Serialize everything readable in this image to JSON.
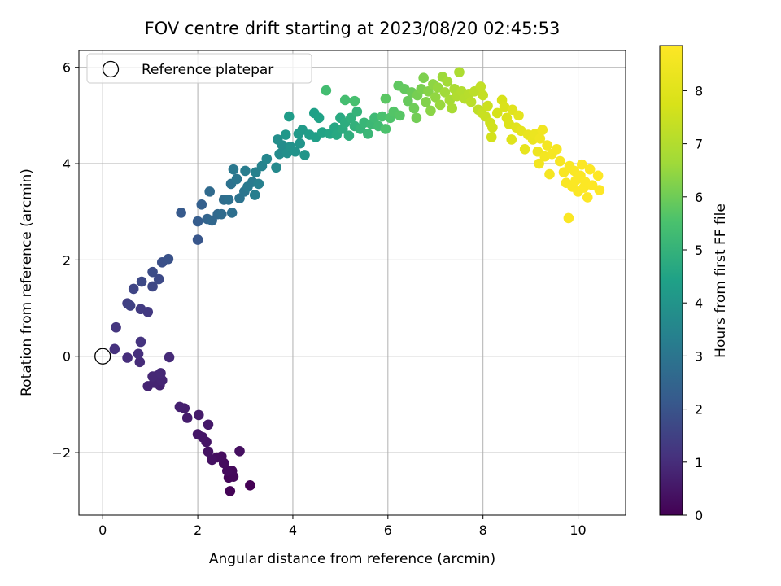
{
  "chart_data": {
    "type": "scatter",
    "title": "FOV centre drift starting at 2023/08/20 02:45:53",
    "xlabel": "Angular distance from reference (arcmin)",
    "ylabel": "Rotation from reference (arcmin)",
    "xlim": [
      -0.5,
      11.0
    ],
    "ylim": [
      -3.3,
      6.35
    ],
    "xticks": [
      0,
      2,
      4,
      6,
      8,
      10
    ],
    "yticks": [
      -2,
      0,
      2,
      4,
      6
    ],
    "grid": true,
    "legend": {
      "placement": "upper-left",
      "entries": [
        "Reference platepar"
      ]
    },
    "reference_point": {
      "x": 0,
      "y": 0,
      "label": "Reference platepar",
      "marker": "hollow-circle"
    },
    "colorbar": {
      "label": "Hours from first FF file",
      "colormap": "viridis",
      "range": [
        0,
        8.85
      ],
      "ticks": [
        0,
        1,
        2,
        3,
        4,
        5,
        6,
        7,
        8
      ]
    },
    "series": [
      {
        "points": [
          {
            "x": 3.1,
            "y": -2.68,
            "t": 0.0
          },
          {
            "x": 2.68,
            "y": -2.8,
            "t": 0.05
          },
          {
            "x": 2.65,
            "y": -2.52,
            "t": 0.1
          },
          {
            "x": 2.75,
            "y": -2.5,
            "t": 0.13
          },
          {
            "x": 2.72,
            "y": -2.38,
            "t": 0.16
          },
          {
            "x": 2.62,
            "y": -2.38,
            "t": 0.2
          },
          {
            "x": 2.55,
            "y": -2.22,
            "t": 0.25
          },
          {
            "x": 2.5,
            "y": -2.08,
            "t": 0.28
          },
          {
            "x": 2.4,
            "y": -2.1,
            "t": 0.3
          },
          {
            "x": 2.88,
            "y": -1.97,
            "t": 0.32
          },
          {
            "x": 2.3,
            "y": -2.15,
            "t": 0.36
          },
          {
            "x": 2.22,
            "y": -1.98,
            "t": 0.4
          },
          {
            "x": 2.18,
            "y": -1.78,
            "t": 0.44
          },
          {
            "x": 2.1,
            "y": -1.68,
            "t": 0.48
          },
          {
            "x": 2.0,
            "y": -1.62,
            "t": 0.5
          },
          {
            "x": 2.22,
            "y": -1.42,
            "t": 0.55
          },
          {
            "x": 2.02,
            "y": -1.22,
            "t": 0.58
          },
          {
            "x": 1.78,
            "y": -1.28,
            "t": 0.62
          },
          {
            "x": 1.72,
            "y": -1.08,
            "t": 0.66
          },
          {
            "x": 1.62,
            "y": -1.05,
            "t": 0.7
          },
          {
            "x": 1.2,
            "y": -0.6,
            "t": 0.75
          },
          {
            "x": 1.08,
            "y": -0.55,
            "t": 0.78
          },
          {
            "x": 0.95,
            "y": -0.62,
            "t": 0.8
          },
          {
            "x": 1.25,
            "y": -0.5,
            "t": 0.83
          },
          {
            "x": 1.15,
            "y": -0.4,
            "t": 0.86
          },
          {
            "x": 1.05,
            "y": -0.42,
            "t": 0.88
          },
          {
            "x": 1.22,
            "y": -0.35,
            "t": 0.9
          },
          {
            "x": 1.4,
            "y": -0.02,
            "t": 0.94
          },
          {
            "x": 0.78,
            "y": -0.12,
            "t": 0.98
          },
          {
            "x": 0.52,
            "y": -0.03,
            "t": 1.02
          },
          {
            "x": 0.75,
            "y": 0.05,
            "t": 1.05
          },
          {
            "x": 0.25,
            "y": 0.15,
            "t": 1.1
          },
          {
            "x": 0.8,
            "y": 0.3,
            "t": 1.15
          },
          {
            "x": 0.28,
            "y": 0.6,
            "t": 1.2
          },
          {
            "x": 0.95,
            "y": 0.92,
            "t": 1.3
          },
          {
            "x": 0.8,
            "y": 0.98,
            "t": 1.35
          },
          {
            "x": 0.52,
            "y": 1.1,
            "t": 1.45
          },
          {
            "x": 0.58,
            "y": 1.05,
            "t": 1.5
          },
          {
            "x": 0.65,
            "y": 1.4,
            "t": 1.6
          },
          {
            "x": 1.05,
            "y": 1.45,
            "t": 1.65
          },
          {
            "x": 0.82,
            "y": 1.55,
            "t": 1.7
          },
          {
            "x": 1.18,
            "y": 1.6,
            "t": 1.75
          },
          {
            "x": 1.05,
            "y": 1.75,
            "t": 1.8
          },
          {
            "x": 1.25,
            "y": 1.95,
            "t": 1.9
          },
          {
            "x": 1.38,
            "y": 2.02,
            "t": 1.95
          },
          {
            "x": 2.0,
            "y": 2.42,
            "t": 2.05
          },
          {
            "x": 1.65,
            "y": 2.98,
            "t": 2.15
          },
          {
            "x": 2.0,
            "y": 2.8,
            "t": 2.25
          },
          {
            "x": 2.08,
            "y": 3.15,
            "t": 2.35
          },
          {
            "x": 2.2,
            "y": 2.85,
            "t": 2.45
          },
          {
            "x": 2.3,
            "y": 2.82,
            "t": 2.55
          },
          {
            "x": 2.42,
            "y": 2.95,
            "t": 2.6
          },
          {
            "x": 2.25,
            "y": 3.42,
            "t": 2.65
          },
          {
            "x": 2.5,
            "y": 2.95,
            "t": 2.7
          },
          {
            "x": 2.55,
            "y": 3.25,
            "t": 2.75
          },
          {
            "x": 2.72,
            "y": 2.98,
            "t": 2.8
          },
          {
            "x": 2.65,
            "y": 3.25,
            "t": 2.85
          },
          {
            "x": 2.7,
            "y": 3.58,
            "t": 2.9
          },
          {
            "x": 2.88,
            "y": 3.28,
            "t": 2.95
          },
          {
            "x": 2.98,
            "y": 3.42,
            "t": 3.0
          },
          {
            "x": 2.82,
            "y": 3.68,
            "t": 3.05
          },
          {
            "x": 2.75,
            "y": 3.88,
            "t": 3.1
          },
          {
            "x": 3.05,
            "y": 3.52,
            "t": 3.15
          },
          {
            "x": 3.15,
            "y": 3.62,
            "t": 3.2
          },
          {
            "x": 3.0,
            "y": 3.85,
            "t": 3.25
          },
          {
            "x": 3.2,
            "y": 3.35,
            "t": 3.3
          },
          {
            "x": 3.28,
            "y": 3.58,
            "t": 3.35
          },
          {
            "x": 3.22,
            "y": 3.82,
            "t": 3.4
          },
          {
            "x": 3.35,
            "y": 3.95,
            "t": 3.45
          },
          {
            "x": 3.45,
            "y": 4.1,
            "t": 3.55
          },
          {
            "x": 3.65,
            "y": 3.92,
            "t": 3.65
          },
          {
            "x": 3.72,
            "y": 4.2,
            "t": 3.7
          },
          {
            "x": 3.78,
            "y": 4.38,
            "t": 3.75
          },
          {
            "x": 3.68,
            "y": 4.5,
            "t": 3.8
          },
          {
            "x": 3.88,
            "y": 4.22,
            "t": 3.85
          },
          {
            "x": 3.95,
            "y": 4.35,
            "t": 3.9
          },
          {
            "x": 4.05,
            "y": 4.25,
            "t": 3.95
          },
          {
            "x": 4.15,
            "y": 4.42,
            "t": 4.0
          },
          {
            "x": 4.25,
            "y": 4.18,
            "t": 4.05
          },
          {
            "x": 3.85,
            "y": 4.6,
            "t": 4.1
          },
          {
            "x": 4.12,
            "y": 4.62,
            "t": 4.15
          },
          {
            "x": 4.2,
            "y": 4.7,
            "t": 4.2
          },
          {
            "x": 3.92,
            "y": 4.98,
            "t": 4.25
          },
          {
            "x": 4.35,
            "y": 4.6,
            "t": 4.3
          },
          {
            "x": 4.48,
            "y": 4.55,
            "t": 4.35
          },
          {
            "x": 4.45,
            "y": 5.05,
            "t": 4.4
          },
          {
            "x": 4.55,
            "y": 4.95,
            "t": 4.45
          },
          {
            "x": 4.62,
            "y": 4.65,
            "t": 4.5
          },
          {
            "x": 4.78,
            "y": 4.62,
            "t": 4.55
          },
          {
            "x": 4.88,
            "y": 4.75,
            "t": 4.6
          },
          {
            "x": 4.92,
            "y": 4.6,
            "t": 4.65
          },
          {
            "x": 5.0,
            "y": 4.95,
            "t": 4.7
          },
          {
            "x": 5.05,
            "y": 4.72,
            "t": 4.75
          },
          {
            "x": 5.1,
            "y": 4.85,
            "t": 4.8
          },
          {
            "x": 5.18,
            "y": 4.58,
            "t": 4.85
          },
          {
            "x": 5.22,
            "y": 4.95,
            "t": 4.9
          },
          {
            "x": 5.3,
            "y": 4.78,
            "t": 4.95
          },
          {
            "x": 5.35,
            "y": 5.08,
            "t": 5.0
          },
          {
            "x": 5.42,
            "y": 4.72,
            "t": 5.05
          },
          {
            "x": 5.5,
            "y": 4.85,
            "t": 5.1
          },
          {
            "x": 5.58,
            "y": 4.62,
            "t": 5.15
          },
          {
            "x": 5.65,
            "y": 4.82,
            "t": 5.2
          },
          {
            "x": 5.72,
            "y": 4.95,
            "t": 5.25
          },
          {
            "x": 5.8,
            "y": 4.78,
            "t": 5.3
          },
          {
            "x": 4.7,
            "y": 5.52,
            "t": 5.35
          },
          {
            "x": 5.1,
            "y": 5.32,
            "t": 5.4
          },
          {
            "x": 5.3,
            "y": 5.3,
            "t": 5.45
          },
          {
            "x": 5.88,
            "y": 4.98,
            "t": 5.5
          },
          {
            "x": 5.95,
            "y": 4.72,
            "t": 5.55
          },
          {
            "x": 6.05,
            "y": 4.95,
            "t": 5.6
          },
          {
            "x": 6.12,
            "y": 5.08,
            "t": 5.65
          },
          {
            "x": 6.25,
            "y": 5.0,
            "t": 5.7
          },
          {
            "x": 5.95,
            "y": 5.35,
            "t": 5.75
          },
          {
            "x": 6.22,
            "y": 5.62,
            "t": 5.8
          },
          {
            "x": 6.35,
            "y": 5.55,
            "t": 5.85
          },
          {
            "x": 6.42,
            "y": 5.3,
            "t": 5.9
          },
          {
            "x": 6.5,
            "y": 5.48,
            "t": 5.95
          },
          {
            "x": 6.55,
            "y": 5.15,
            "t": 6.0
          },
          {
            "x": 6.6,
            "y": 4.95,
            "t": 6.05
          },
          {
            "x": 6.62,
            "y": 5.42,
            "t": 6.1
          },
          {
            "x": 6.7,
            "y": 5.55,
            "t": 6.15
          },
          {
            "x": 6.75,
            "y": 5.78,
            "t": 6.2
          },
          {
            "x": 6.8,
            "y": 5.28,
            "t": 6.25
          },
          {
            "x": 6.85,
            "y": 5.5,
            "t": 6.3
          },
          {
            "x": 6.9,
            "y": 5.1,
            "t": 6.35
          },
          {
            "x": 6.95,
            "y": 5.65,
            "t": 6.4
          },
          {
            "x": 7.0,
            "y": 5.38,
            "t": 6.45
          },
          {
            "x": 7.05,
            "y": 5.58,
            "t": 6.5
          },
          {
            "x": 7.1,
            "y": 5.22,
            "t": 6.55
          },
          {
            "x": 7.15,
            "y": 5.8,
            "t": 6.6
          },
          {
            "x": 7.2,
            "y": 5.48,
            "t": 6.65
          },
          {
            "x": 7.25,
            "y": 5.7,
            "t": 6.7
          },
          {
            "x": 7.3,
            "y": 5.32,
            "t": 6.75
          },
          {
            "x": 7.35,
            "y": 5.15,
            "t": 6.8
          },
          {
            "x": 7.4,
            "y": 5.55,
            "t": 6.85
          },
          {
            "x": 7.5,
            "y": 5.9,
            "t": 6.9
          },
          {
            "x": 7.45,
            "y": 5.4,
            "t": 6.95
          },
          {
            "x": 7.55,
            "y": 5.5,
            "t": 7.0
          },
          {
            "x": 7.62,
            "y": 5.35,
            "t": 7.05
          },
          {
            "x": 7.7,
            "y": 5.45,
            "t": 7.1
          },
          {
            "x": 7.75,
            "y": 5.28,
            "t": 7.15
          },
          {
            "x": 7.82,
            "y": 5.5,
            "t": 7.2
          },
          {
            "x": 7.9,
            "y": 5.12,
            "t": 7.25
          },
          {
            "x": 7.95,
            "y": 5.6,
            "t": 7.3
          },
          {
            "x": 8.0,
            "y": 5.42,
            "t": 7.35
          },
          {
            "x": 7.98,
            "y": 5.05,
            "t": 7.4
          },
          {
            "x": 8.05,
            "y": 4.98,
            "t": 7.45
          },
          {
            "x": 8.1,
            "y": 5.2,
            "t": 7.5
          },
          {
            "x": 8.15,
            "y": 4.85,
            "t": 7.55
          },
          {
            "x": 8.2,
            "y": 4.75,
            "t": 7.6
          },
          {
            "x": 8.18,
            "y": 4.55,
            "t": 7.65
          },
          {
            "x": 8.3,
            "y": 5.05,
            "t": 7.7
          },
          {
            "x": 8.4,
            "y": 5.32,
            "t": 7.75
          },
          {
            "x": 8.45,
            "y": 5.18,
            "t": 7.8
          },
          {
            "x": 8.5,
            "y": 4.95,
            "t": 7.85
          },
          {
            "x": 8.55,
            "y": 4.82,
            "t": 7.9
          },
          {
            "x": 8.6,
            "y": 4.5,
            "t": 7.95
          },
          {
            "x": 8.62,
            "y": 5.12,
            "t": 8.0
          },
          {
            "x": 8.7,
            "y": 4.75,
            "t": 8.05
          },
          {
            "x": 8.75,
            "y": 5.0,
            "t": 8.1
          },
          {
            "x": 8.8,
            "y": 4.68,
            "t": 8.15
          },
          {
            "x": 8.88,
            "y": 4.3,
            "t": 8.2
          },
          {
            "x": 8.95,
            "y": 4.6,
            "t": 8.25
          },
          {
            "x": 9.05,
            "y": 4.5,
            "t": 8.3
          },
          {
            "x": 9.1,
            "y": 4.62,
            "t": 8.35
          },
          {
            "x": 9.15,
            "y": 4.25,
            "t": 8.4
          },
          {
            "x": 9.2,
            "y": 4.52,
            "t": 8.45
          },
          {
            "x": 9.25,
            "y": 4.7,
            "t": 8.5
          },
          {
            "x": 9.18,
            "y": 4.0,
            "t": 8.52
          },
          {
            "x": 9.3,
            "y": 4.15,
            "t": 8.55
          },
          {
            "x": 9.35,
            "y": 4.38,
            "t": 8.58
          },
          {
            "x": 9.4,
            "y": 3.78,
            "t": 8.6
          },
          {
            "x": 9.45,
            "y": 4.2,
            "t": 8.62
          },
          {
            "x": 9.55,
            "y": 4.3,
            "t": 8.65
          },
          {
            "x": 9.62,
            "y": 4.05,
            "t": 8.68
          },
          {
            "x": 9.7,
            "y": 3.82,
            "t": 8.7
          },
          {
            "x": 9.75,
            "y": 3.6,
            "t": 8.72
          },
          {
            "x": 9.82,
            "y": 3.95,
            "t": 8.74
          },
          {
            "x": 9.8,
            "y": 2.87,
            "t": 8.75
          },
          {
            "x": 9.88,
            "y": 3.52,
            "t": 8.76
          },
          {
            "x": 9.92,
            "y": 3.85,
            "t": 8.77
          },
          {
            "x": 9.95,
            "y": 3.65,
            "t": 8.78
          },
          {
            "x": 10.0,
            "y": 3.42,
            "t": 8.79
          },
          {
            "x": 10.05,
            "y": 3.75,
            "t": 8.8
          },
          {
            "x": 10.08,
            "y": 3.98,
            "t": 8.81
          },
          {
            "x": 10.12,
            "y": 3.5,
            "t": 8.82
          },
          {
            "x": 10.15,
            "y": 3.62,
            "t": 8.83
          },
          {
            "x": 10.2,
            "y": 3.3,
            "t": 8.83
          },
          {
            "x": 10.25,
            "y": 3.88,
            "t": 8.84
          },
          {
            "x": 10.3,
            "y": 3.55,
            "t": 8.84
          },
          {
            "x": 10.42,
            "y": 3.75,
            "t": 8.85
          },
          {
            "x": 10.45,
            "y": 3.45,
            "t": 8.85
          }
        ]
      }
    ]
  }
}
